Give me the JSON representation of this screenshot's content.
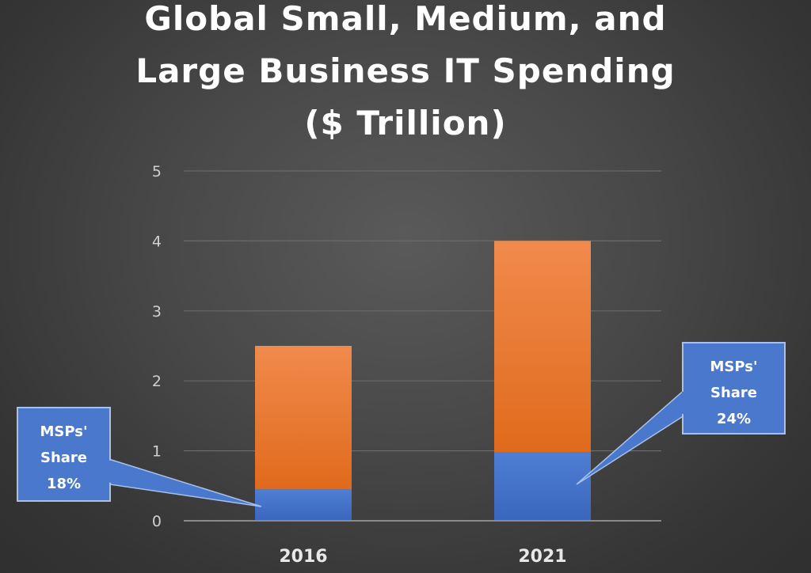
{
  "chart_data": {
    "type": "bar",
    "stacked": true,
    "title_lines": [
      "Global Small, Medium, and",
      "Large Business IT Spending",
      "($ Trillion)"
    ],
    "xlabel": "",
    "ylabel": "",
    "categories": [
      "2016",
      "2021"
    ],
    "ylim": [
      0,
      5
    ],
    "yticks": [
      "0",
      "1",
      "2",
      "3",
      "4",
      "5"
    ],
    "grid": true,
    "series": [
      {
        "values": [
          0.45,
          0.98
        ],
        "color": "#4472c4"
      },
      {
        "values": [
          2.05,
          3.02
        ],
        "color": "#ed7d31"
      }
    ],
    "totals": [
      2.5,
      4.0
    ],
    "annotations": [
      {
        "lines": [
          "MSPs'",
          "Share",
          "18%"
        ],
        "category": "2016"
      },
      {
        "lines": [
          "MSPs'",
          "Share",
          "24%"
        ],
        "category": "2021"
      }
    ]
  }
}
